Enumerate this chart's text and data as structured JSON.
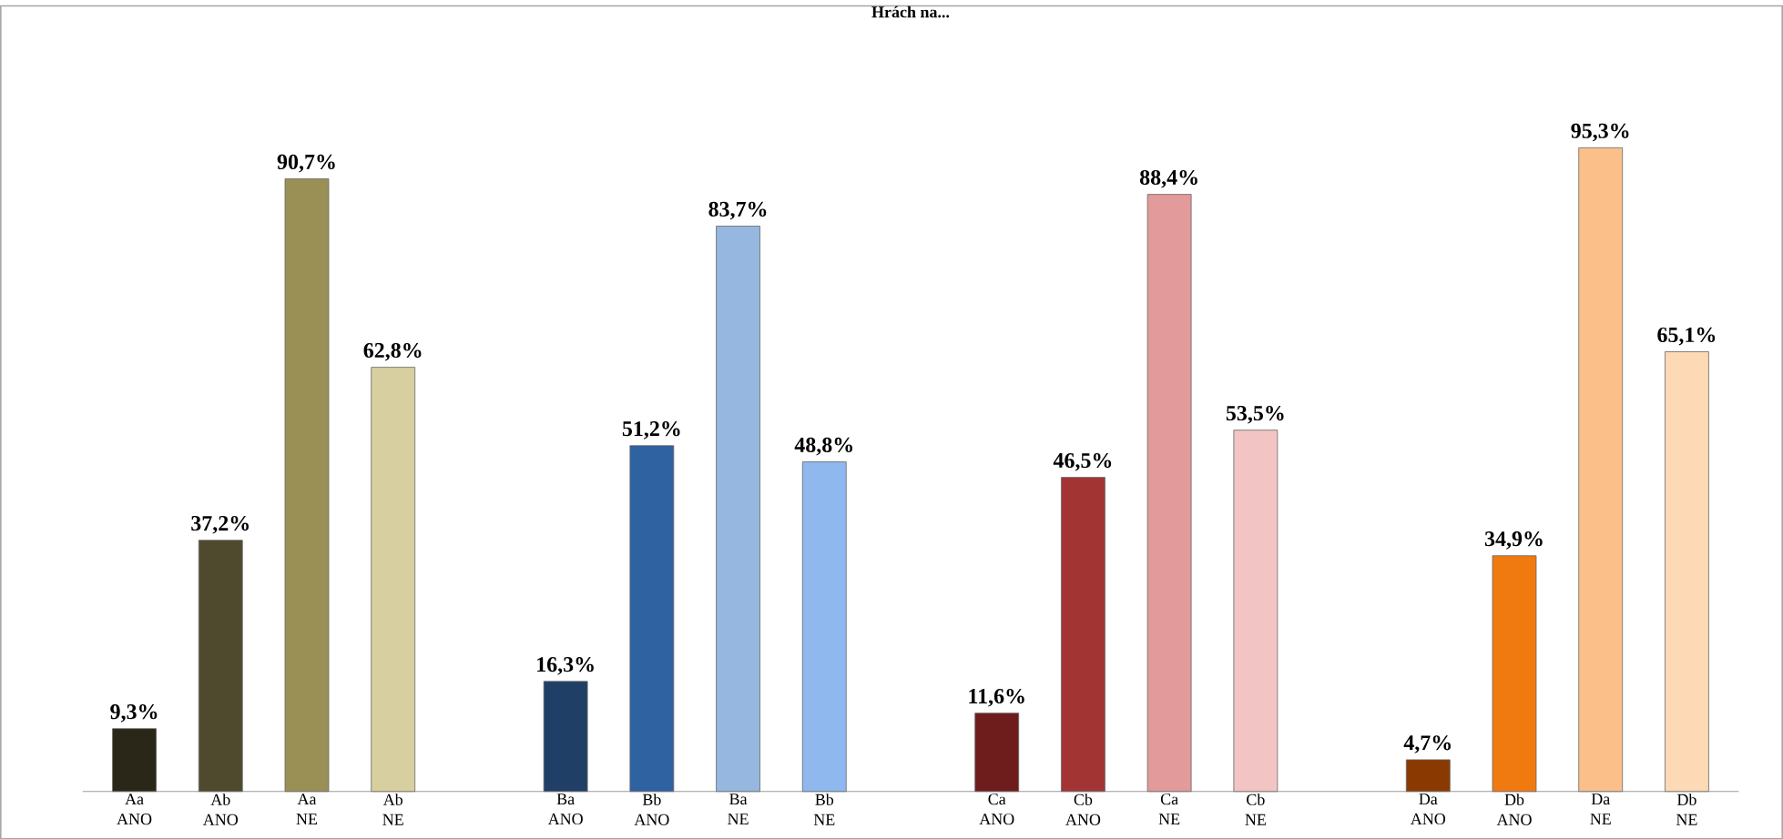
{
  "chart_data": {
    "type": "bar",
    "title": "Hrách na...",
    "categories": [
      "Aa ANO",
      "Ab ANO",
      "Aa NE",
      "Ab NE",
      null,
      "Ba ANO",
      "Bb ANO",
      "Ba NE",
      "Bb NE",
      null,
      "Ca ANO",
      "Cb ANO",
      "Ca NE",
      "Cb NE",
      null,
      "Da ANO",
      "Db ANO",
      "Da NE",
      "Db NE"
    ],
    "values": [
      9.3,
      37.2,
      90.7,
      62.8,
      null,
      16.3,
      51.2,
      83.7,
      48.8,
      null,
      11.6,
      46.5,
      88.4,
      53.5,
      null,
      4.7,
      34.9,
      95.3,
      65.1
    ],
    "value_labels": [
      "9,3%",
      "37,2%",
      "90,7%",
      "62,8%",
      null,
      "16,3%",
      "51,2%",
      "83,7%",
      "48,8%",
      null,
      "11,6%",
      "46,5%",
      "88,4%",
      "53,5%",
      null,
      "4,7%",
      "34,9%",
      "95,3%",
      "65,1%"
    ],
    "colors": [
      "#2a2618",
      "#4f4a2e",
      "#9a8f55",
      "#d8cfa0",
      null,
      "#1f3f66",
      "#2f62a0",
      "#95b7e0",
      "#8fb8ef",
      null,
      "#6e1c1c",
      "#a33434",
      "#e39a9a",
      "#f2c4c4",
      null,
      "#8a3a00",
      "#f07a10",
      "#fbc08a",
      "#fdd9b5"
    ]
  }
}
